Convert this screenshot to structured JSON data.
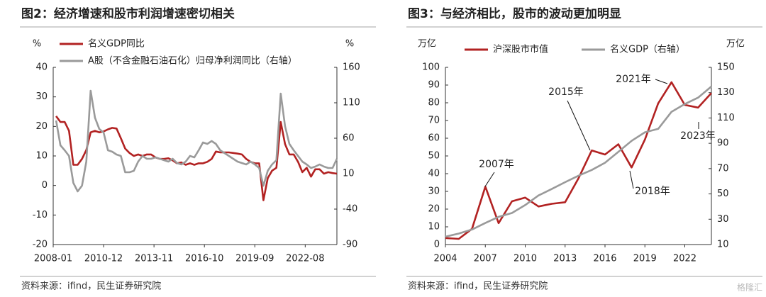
{
  "chart_data": [
    {
      "type": "line",
      "title": "图2：经济增速和股市利润增速密切相关",
      "y_label": "%",
      "y2_label": "%",
      "x": [
        "2008-03",
        "2008-06",
        "2008-09",
        "2008-12",
        "2009-03",
        "2009-06",
        "2009-09",
        "2009-12",
        "2010-03",
        "2010-06",
        "2010-09",
        "2010-12",
        "2011-03",
        "2011-06",
        "2011-09",
        "2011-12",
        "2012-03",
        "2012-06",
        "2012-09",
        "2012-12",
        "2013-03",
        "2013-06",
        "2013-09",
        "2013-12",
        "2014-03",
        "2014-06",
        "2014-09",
        "2014-12",
        "2015-03",
        "2015-06",
        "2015-09",
        "2015-12",
        "2016-03",
        "2016-06",
        "2016-09",
        "2016-12",
        "2017-03",
        "2017-06",
        "2017-09",
        "2017-12",
        "2018-03",
        "2018-06",
        "2018-09",
        "2018-12",
        "2019-03",
        "2019-06",
        "2019-09",
        "2019-12",
        "2020-03",
        "2020-06",
        "2020-09",
        "2020-12",
        "2021-03",
        "2021-06",
        "2021-09",
        "2021-12",
        "2022-03",
        "2022-06",
        "2022-09",
        "2022-12",
        "2023-03",
        "2023-06",
        "2023-09",
        "2023-12",
        "2024-03",
        "2024-06"
      ],
      "xlim": [
        "2008-01",
        "2024-06"
      ],
      "xticks": [
        "2008-01",
        "2010-12",
        "2013-11",
        "2016-10",
        "2019-09",
        "2022-08"
      ],
      "ylim": [
        -20,
        40
      ],
      "yticks": [
        -20,
        -10,
        0,
        10,
        20,
        30,
        40
      ],
      "y2lim": [
        -90,
        160
      ],
      "y2ticks": [
        -90,
        -40,
        10,
        60,
        110,
        160
      ],
      "series": [
        {
          "name": "名义GDP同比",
          "color": "#b22222",
          "values": [
            23.5,
            21.5,
            21.5,
            18.5,
            7,
            7,
            9,
            12,
            18,
            18.5,
            18,
            18.3,
            19,
            19.5,
            19.3,
            16,
            12.5,
            11,
            10,
            10.5,
            10,
            10.5,
            10.5,
            9.5,
            9,
            9,
            9.2,
            8.5,
            7.5,
            7.8,
            7,
            7.5,
            7,
            7.5,
            7.5,
            8,
            9,
            11.5,
            11.2,
            11.2,
            11.2,
            11,
            10.8,
            10.5,
            9,
            8,
            7.5,
            7.5,
            -5,
            2.5,
            5,
            6,
            21.5,
            14,
            10.5,
            10.5,
            8,
            4.5,
            6,
            3,
            5.5,
            5.5,
            4,
            4.5,
            4.2,
            4
          ]
        },
        {
          "name": "A股（不含金融石油石化）归母净利润同比（右轴）",
          "color": "#9a9a9a",
          "axis": "y2",
          "values": [
            85,
            50,
            43,
            35,
            -3,
            -15,
            -7,
            27,
            127,
            89,
            73,
            68,
            43,
            41,
            37,
            35,
            12,
            12,
            14,
            27,
            35,
            31,
            31,
            33,
            31,
            29,
            27,
            31,
            25,
            23,
            27,
            35,
            33,
            43,
            54,
            52,
            56,
            52,
            43,
            39,
            35,
            31,
            27,
            25,
            23,
            27,
            23,
            18,
            -7,
            14,
            23,
            29,
            123,
            77,
            52,
            43,
            35,
            27,
            23,
            18,
            20,
            23,
            20,
            18,
            18,
            31
          ]
        }
      ],
      "source": "资料来源：ifind，民生证券研究院"
    },
    {
      "type": "line",
      "title": "图3：与经济相比，股市的波动更加明显",
      "y_label": "万亿",
      "y2_label": "万亿",
      "x": [
        2004,
        2005,
        2006,
        2007,
        2008,
        2009,
        2010,
        2011,
        2012,
        2013,
        2014,
        2015,
        2016,
        2017,
        2018,
        2019,
        2020,
        2021,
        2022,
        2023,
        2024
      ],
      "xlim": [
        2004,
        2024
      ],
      "xticks": [
        2004,
        2007,
        2010,
        2013,
        2016,
        2019,
        2022
      ],
      "ylim": [
        0,
        100
      ],
      "yticks": [
        0,
        10,
        20,
        30,
        40,
        50,
        60,
        70,
        80,
        90,
        100
      ],
      "y2lim": [
        10,
        150
      ],
      "y2ticks": [
        10,
        30,
        50,
        70,
        90,
        110,
        130,
        150
      ],
      "series": [
        {
          "name": "沪深股市市值",
          "color": "#b22222",
          "values": [
            3.7,
            3.2,
            8.9,
            32.7,
            12.1,
            24.4,
            26.5,
            21.5,
            23.0,
            23.9,
            37.3,
            53.1,
            50.8,
            56.6,
            43.5,
            59.3,
            79.7,
            91.6,
            78.8,
            77.3,
            85.5
          ]
        },
        {
          "name": "名义GDP（右轴）",
          "color": "#9a9a9a",
          "axis": "y2",
          "values": [
            16.2,
            18.7,
            21.9,
            27.0,
            31.9,
            34.9,
            41.2,
            48.8,
            53.9,
            59.3,
            64.4,
            68.9,
            74.6,
            83.2,
            91.9,
            98.7,
            101.4,
            114.9,
            121.0,
            126.1,
            134.9
          ]
        }
      ],
      "annotations": [
        "2007年",
        "2015年",
        "2018年",
        "2021年",
        "2023年"
      ],
      "source": "资料来源：ifind，民生证券研究院"
    }
  ],
  "watermark": "格隆汇"
}
